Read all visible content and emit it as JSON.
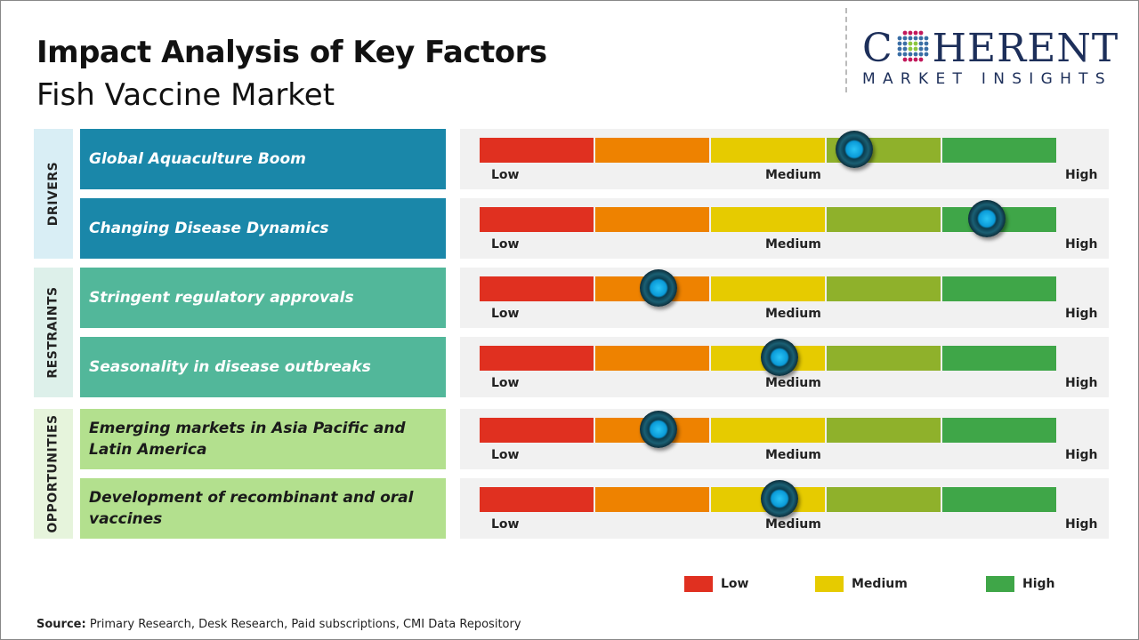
{
  "header": {
    "title": "Impact Analysis of Key Factors",
    "subtitle": "Fish Vaccine Market"
  },
  "logo": {
    "text_top": "COHERENT",
    "text_bottom": "MARKET INSIGHTS"
  },
  "colors": {
    "low": "#e03020",
    "low_mid": "#ee8200",
    "medium": "#e6cb00",
    "mid_high": "#8fb12b",
    "high": "#3fa648",
    "drivers": "#1a87a9",
    "restraints": "#52b79a",
    "opportunities": "#b3e08e"
  },
  "chart_data": {
    "type": "gauge",
    "scale_labels": [
      "Low",
      "Medium",
      "High"
    ],
    "groups": [
      {
        "name": "DRIVERS",
        "factors": [
          {
            "label": "Global Aquaculture Boom",
            "impact_pct": 65
          },
          {
            "label": "Changing Disease Dynamics",
            "impact_pct": 88
          }
        ]
      },
      {
        "name": "RESTRAINTS",
        "factors": [
          {
            "label": "Stringent regulatory approvals",
            "impact_pct": 31
          },
          {
            "label": "Seasonality in disease outbreaks",
            "impact_pct": 52
          }
        ]
      },
      {
        "name": "OPPORTUNITIES",
        "factors": [
          {
            "label": "Emerging markets in Asia Pacific and Latin America",
            "impact_pct": 31
          },
          {
            "label": "Development of recombinant and oral vaccines",
            "impact_pct": 52
          }
        ]
      }
    ],
    "legend": [
      {
        "label": "Low",
        "color": "#e03020"
      },
      {
        "label": "Medium",
        "color": "#e6cb00"
      },
      {
        "label": "High",
        "color": "#3fa648"
      }
    ]
  },
  "source": {
    "label": "Source:",
    "text": " Primary Research, Desk Research, Paid subscriptions, CMI Data Repository"
  }
}
